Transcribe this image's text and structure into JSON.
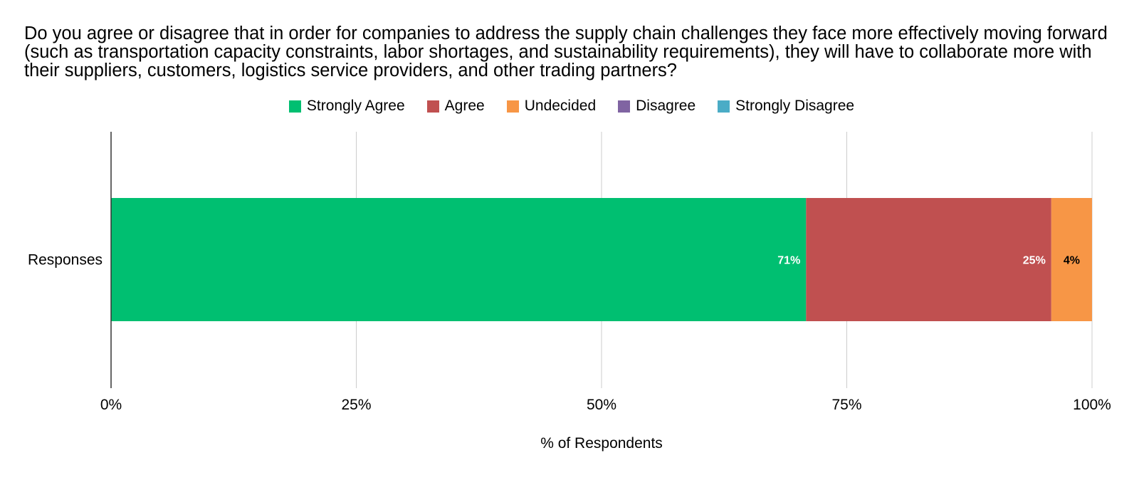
{
  "chart_data": {
    "type": "bar",
    "orientation": "horizontal",
    "stacked": true,
    "title": "Do you agree or disagree that in order for companies to address the supply chain challenges they face more effectively moving forward (such as transportation capacity constraints, labor shortages, and sustainability requirements), they will have to collaborate more with their suppliers, customers, logistics service providers, and other trading partners?",
    "categories": [
      "Responses"
    ],
    "series": [
      {
        "name": "Strongly Agree",
        "color": "#00BF71",
        "values": [
          0.7085
        ],
        "label": "71%",
        "label_color": "#ffffff"
      },
      {
        "name": "Agree",
        "color": "#C05050",
        "values": [
          0.25
        ],
        "label": "25%",
        "label_color": "#ffffff"
      },
      {
        "name": "Undecided",
        "color": "#F79646",
        "values": [
          0.0415
        ],
        "label": "4%",
        "label_color": "#000000"
      },
      {
        "name": "Disagree",
        "color": "#8064A2",
        "values": [
          0
        ],
        "label": "",
        "label_color": "#000000"
      },
      {
        "name": "Strongly Disagree",
        "color": "#4BACC6",
        "values": [
          0
        ],
        "label": "",
        "label_color": "#000000"
      }
    ],
    "xlim": [
      0,
      1
    ],
    "x_ticks": [
      0,
      0.25,
      0.5,
      0.75,
      1
    ],
    "x_tick_labels": [
      "0%",
      "25%",
      "50%",
      "75%",
      "100%"
    ],
    "xlabel": "% of Respondents",
    "ylabel": "",
    "grid": true,
    "legend_position": "top-center"
  }
}
